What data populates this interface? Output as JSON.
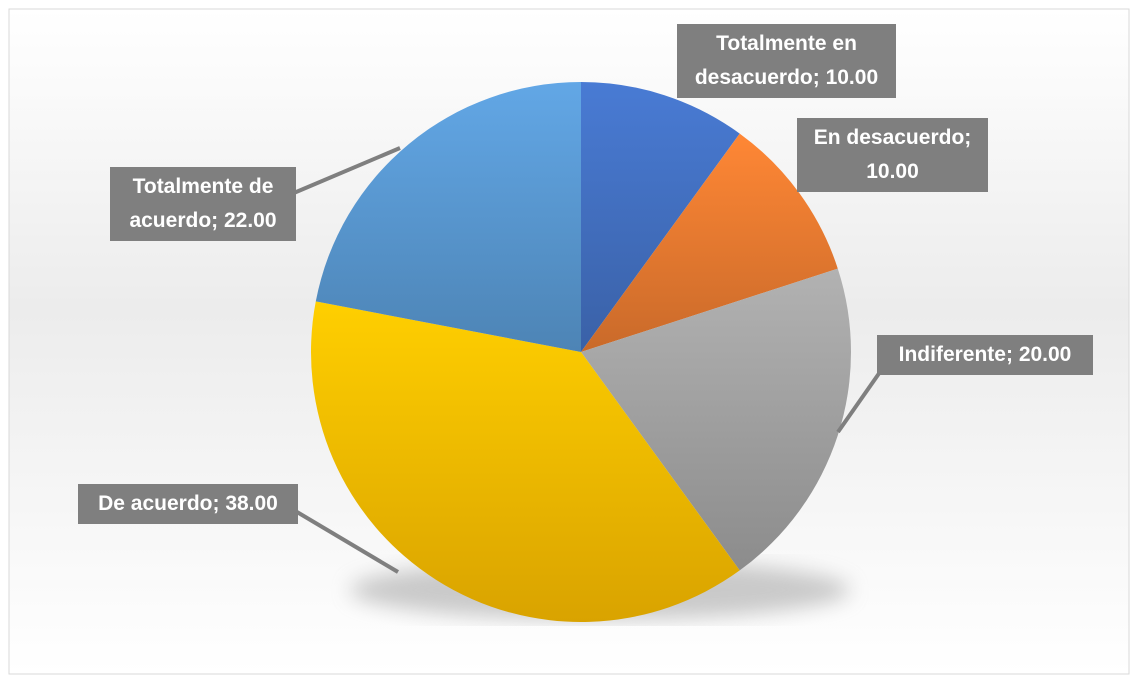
{
  "chart_data": {
    "type": "pie",
    "categories": [
      "Totalmente en desacuerdo",
      "En desacuerdo",
      "Indiferente",
      "De acuerdo",
      "Totalmente de acuerdo"
    ],
    "values": [
      10,
      10,
      20,
      38,
      22
    ],
    "value_labels": [
      "10.00",
      "10.00",
      "20.00",
      "38.00",
      "22.00"
    ],
    "label_separator": "; ",
    "colors": [
      "#4472c4",
      "#ed7d31",
      "#a5a5a5",
      "#ffc000",
      "#5b9bd5"
    ]
  }
}
